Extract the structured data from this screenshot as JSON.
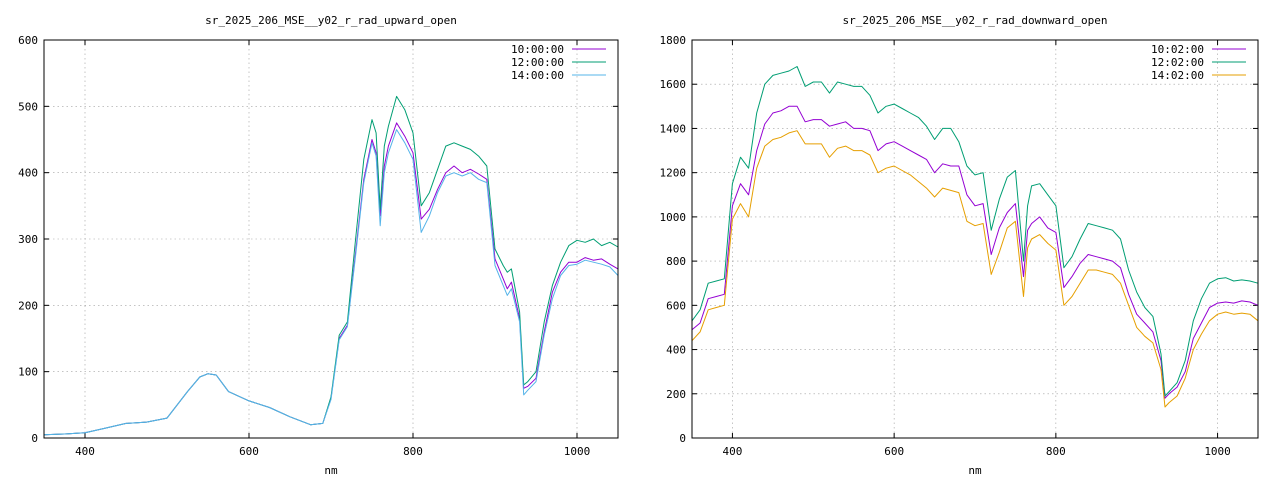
{
  "chart_data": [
    {
      "type": "line",
      "title": "sr_2025_206_MSE__y02_r_rad_upward_open",
      "xlabel": "nm",
      "ylabel": "",
      "xlim": [
        350,
        1050
      ],
      "ylim": [
        0,
        600
      ],
      "xticks": [
        400,
        600,
        800,
        1000
      ],
      "yticks": [
        0,
        100,
        200,
        300,
        400,
        500,
        600
      ],
      "grid": true,
      "legend": "top-right",
      "x": [
        350,
        375,
        400,
        425,
        450,
        475,
        500,
        525,
        540,
        550,
        560,
        575,
        600,
        625,
        650,
        675,
        690,
        700,
        710,
        720,
        730,
        740,
        750,
        755,
        760,
        765,
        770,
        780,
        790,
        800,
        810,
        820,
        830,
        840,
        850,
        860,
        870,
        880,
        890,
        900,
        910,
        915,
        920,
        930,
        935,
        940,
        950,
        960,
        970,
        980,
        990,
        1000,
        1010,
        1020,
        1030,
        1040,
        1050
      ],
      "series": [
        {
          "name": "10:00:00",
          "color": "#9400d3",
          "values": [
            5,
            6,
            8,
            15,
            22,
            24,
            30,
            70,
            92,
            97,
            95,
            70,
            56,
            46,
            32,
            20,
            22,
            60,
            150,
            170,
            280,
            390,
            450,
            430,
            335,
            410,
            440,
            475,
            455,
            430,
            330,
            345,
            375,
            400,
            410,
            400,
            405,
            398,
            390,
            270,
            240,
            225,
            235,
            180,
            75,
            78,
            90,
            160,
            220,
            250,
            265,
            265,
            272,
            268,
            270,
            262,
            255
          ]
        },
        {
          "name": "12:00:00",
          "color": "#009e73",
          "values": [
            5,
            6,
            8,
            15,
            22,
            24,
            30,
            70,
            92,
            97,
            95,
            70,
            56,
            46,
            32,
            20,
            22,
            62,
            155,
            175,
            300,
            420,
            480,
            460,
            345,
            440,
            470,
            515,
            495,
            460,
            350,
            370,
            405,
            440,
            445,
            440,
            435,
            425,
            410,
            285,
            260,
            250,
            255,
            190,
            80,
            85,
            100,
            175,
            230,
            265,
            290,
            298,
            295,
            300,
            290,
            295,
            288
          ]
        },
        {
          "name": "14:00:00",
          "color": "#56b4e9",
          "values": [
            5,
            6,
            8,
            15,
            22,
            24,
            30,
            70,
            92,
            97,
            95,
            70,
            56,
            46,
            32,
            20,
            22,
            58,
            148,
            168,
            275,
            385,
            445,
            425,
            320,
            400,
            430,
            465,
            445,
            420,
            310,
            335,
            370,
            395,
            400,
            395,
            400,
            390,
            385,
            260,
            230,
            215,
            225,
            175,
            65,
            72,
            85,
            155,
            210,
            245,
            260,
            262,
            268,
            265,
            262,
            258,
            245
          ]
        }
      ]
    },
    {
      "type": "line",
      "title": "sr_2025_206_MSE__y02_r_rad_downward_open",
      "xlabel": "nm",
      "ylabel": "",
      "xlim": [
        350,
        1050
      ],
      "ylim": [
        0,
        1800
      ],
      "xticks": [
        400,
        600,
        800,
        1000
      ],
      "yticks": [
        0,
        200,
        400,
        600,
        800,
        1000,
        1200,
        1400,
        1600,
        1800
      ],
      "grid": true,
      "legend": "top-right",
      "x": [
        350,
        360,
        370,
        380,
        390,
        400,
        410,
        420,
        430,
        440,
        450,
        460,
        470,
        480,
        490,
        500,
        510,
        520,
        530,
        540,
        550,
        560,
        570,
        580,
        590,
        600,
        610,
        620,
        630,
        640,
        650,
        660,
        670,
        680,
        690,
        700,
        710,
        720,
        730,
        740,
        750,
        760,
        765,
        770,
        780,
        790,
        800,
        810,
        820,
        830,
        840,
        850,
        860,
        870,
        880,
        890,
        900,
        910,
        920,
        930,
        935,
        940,
        950,
        960,
        970,
        980,
        990,
        1000,
        1010,
        1020,
        1030,
        1040,
        1050
      ],
      "series": [
        {
          "name": "10:02:00",
          "color": "#9400d3",
          "values": [
            490,
            520,
            630,
            640,
            650,
            1050,
            1150,
            1100,
            1300,
            1420,
            1470,
            1480,
            1500,
            1500,
            1430,
            1440,
            1440,
            1410,
            1420,
            1430,
            1400,
            1400,
            1390,
            1300,
            1330,
            1340,
            1320,
            1300,
            1280,
            1260,
            1200,
            1240,
            1230,
            1230,
            1100,
            1050,
            1060,
            830,
            950,
            1020,
            1060,
            730,
            940,
            970,
            1000,
            950,
            930,
            680,
            730,
            790,
            830,
            820,
            810,
            800,
            770,
            650,
            560,
            520,
            480,
            350,
            180,
            200,
            230,
            300,
            450,
            520,
            590,
            610,
            615,
            610,
            620,
            615,
            600
          ]
        },
        {
          "name": "12:02:00",
          "color": "#009e73",
          "values": [
            530,
            580,
            700,
            710,
            720,
            1150,
            1270,
            1220,
            1470,
            1600,
            1640,
            1650,
            1660,
            1680,
            1590,
            1610,
            1610,
            1560,
            1610,
            1600,
            1590,
            1590,
            1550,
            1470,
            1500,
            1510,
            1490,
            1470,
            1450,
            1410,
            1350,
            1400,
            1400,
            1340,
            1230,
            1190,
            1200,
            940,
            1080,
            1180,
            1210,
            800,
            1050,
            1140,
            1150,
            1100,
            1050,
            770,
            820,
            900,
            970,
            960,
            950,
            940,
            900,
            760,
            660,
            590,
            550,
            380,
            190,
            210,
            250,
            350,
            530,
            630,
            700,
            720,
            725,
            710,
            715,
            710,
            700
          ]
        },
        {
          "name": "14:02:00",
          "color": "#e69f00",
          "values": [
            440,
            480,
            580,
            590,
            600,
            990,
            1060,
            1000,
            1220,
            1320,
            1350,
            1360,
            1380,
            1390,
            1330,
            1330,
            1330,
            1270,
            1310,
            1320,
            1300,
            1300,
            1280,
            1200,
            1220,
            1230,
            1210,
            1190,
            1160,
            1130,
            1090,
            1130,
            1120,
            1110,
            980,
            960,
            970,
            740,
            840,
            950,
            980,
            640,
            860,
            900,
            920,
            880,
            850,
            600,
            640,
            700,
            760,
            760,
            750,
            740,
            700,
            600,
            500,
            460,
            430,
            310,
            140,
            160,
            190,
            270,
            400,
            470,
            530,
            560,
            570,
            560,
            565,
            560,
            530
          ]
        }
      ]
    }
  ]
}
